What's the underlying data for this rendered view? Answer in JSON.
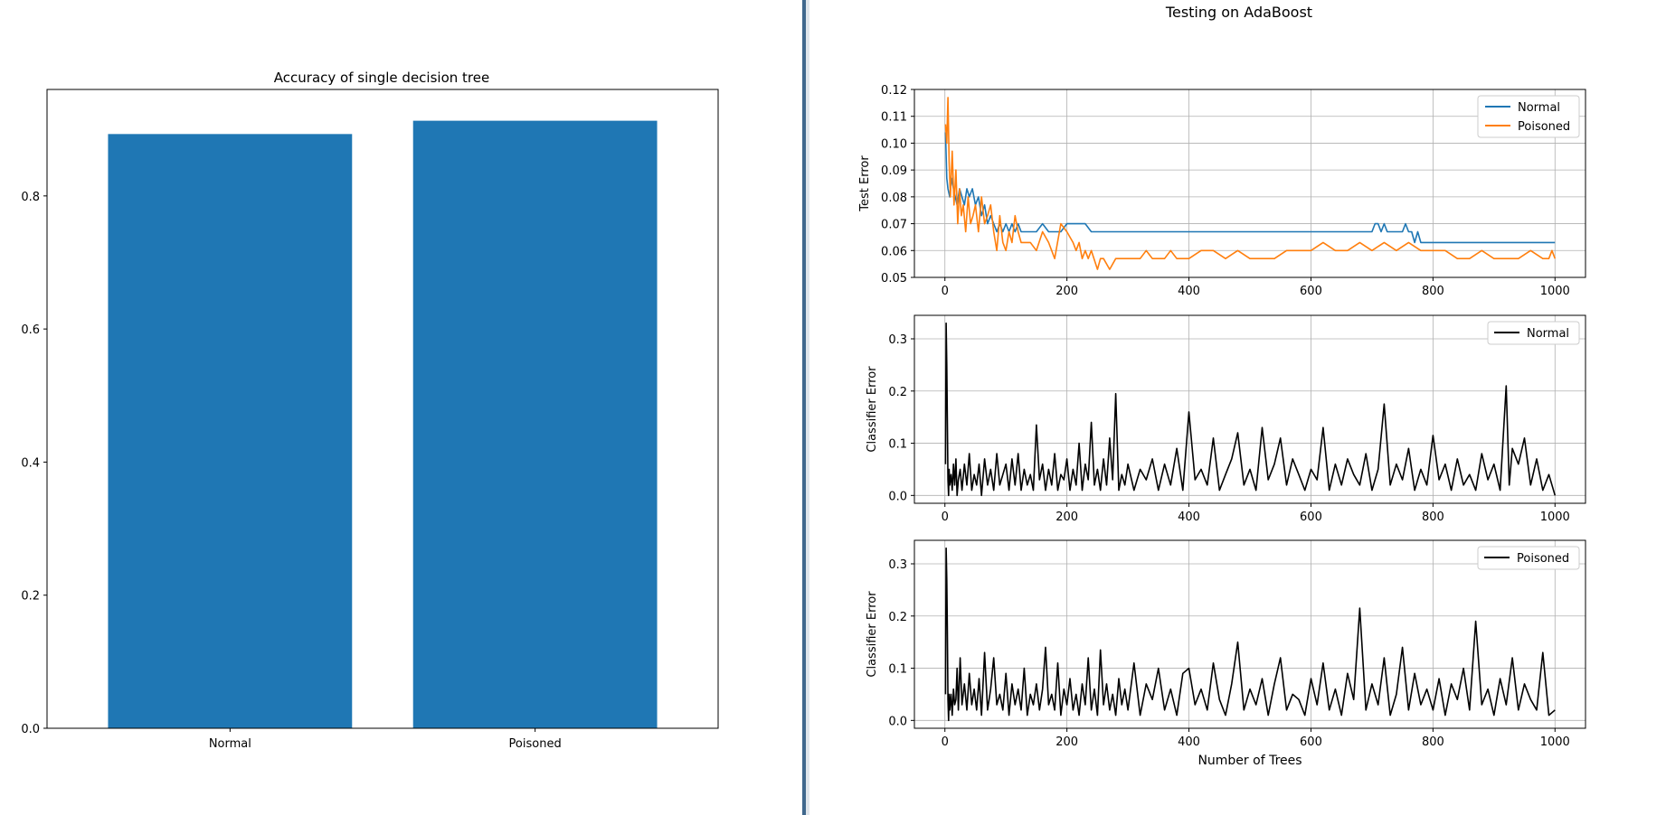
{
  "left_figure": {
    "title": "Accuracy of single decision tree"
  },
  "right_figure": {
    "suptitle": "Testing on AdaBoost",
    "xlabel": "Number of Trees",
    "panel1_ylabel": "Test Error",
    "panel2_ylabel": "Classifier Error",
    "panel3_ylabel": "Classifier Error",
    "legend1": [
      "Normal",
      "Poisoned"
    ],
    "legend2": "Normal",
    "legend3": "Poisoned"
  },
  "colors": {
    "bar": "#1f77b4",
    "normal": "#1f77b4",
    "poisoned": "#ff7f0e",
    "classifier": "#000000",
    "divider": "#1f4e79",
    "grid": "#b0b0b0"
  },
  "chart_data": [
    {
      "type": "bar",
      "title": "Accuracy of single decision tree",
      "categories": [
        "Normal",
        "Poisoned"
      ],
      "values": [
        0.893,
        0.913
      ],
      "ylim": [
        0,
        0.96
      ],
      "yticks": [
        0.0,
        0.2,
        0.4,
        0.6,
        0.8
      ],
      "ytick_labels": [
        "0.0",
        "0.2",
        "0.4",
        "0.6",
        "0.8"
      ],
      "xlabel": "",
      "ylabel": "",
      "grid": false
    },
    {
      "type": "line",
      "title": "",
      "ylabel": "Test Error",
      "xlim": [
        -50,
        1050
      ],
      "ylim": [
        0.05,
        0.12
      ],
      "xticks": [
        0,
        200,
        400,
        600,
        800,
        1000
      ],
      "xtick_labels": [
        "0",
        "200",
        "400",
        "600",
        "800",
        "1000"
      ],
      "yticks": [
        0.05,
        0.06,
        0.07,
        0.08,
        0.09,
        0.1,
        0.11,
        0.12
      ],
      "ytick_labels": [
        "0.05",
        "0.06",
        "0.07",
        "0.08",
        "0.09",
        "0.10",
        "0.11",
        "0.12"
      ],
      "grid": true,
      "legend": "top-right",
      "series": [
        {
          "name": "Normal",
          "x": [
            1,
            3,
            5,
            8,
            11,
            14,
            17,
            20,
            24,
            28,
            32,
            36,
            40,
            45,
            50,
            55,
            60,
            65,
            70,
            75,
            80,
            85,
            90,
            95,
            100,
            105,
            110,
            115,
            120,
            125,
            130,
            140,
            150,
            160,
            170,
            180,
            190,
            200,
            210,
            220,
            230,
            240,
            250,
            300,
            400,
            500,
            600,
            700,
            705,
            710,
            715,
            720,
            725,
            730,
            740,
            750,
            755,
            760,
            765,
            770,
            775,
            780,
            790,
            800,
            850,
            900,
            950,
            1000
          ],
          "y": [
            0.104,
            0.087,
            0.083,
            0.08,
            0.087,
            0.083,
            0.08,
            0.077,
            0.083,
            0.08,
            0.077,
            0.083,
            0.08,
            0.083,
            0.077,
            0.08,
            0.073,
            0.077,
            0.07,
            0.073,
            0.07,
            0.067,
            0.07,
            0.067,
            0.07,
            0.067,
            0.07,
            0.067,
            0.07,
            0.067,
            0.067,
            0.067,
            0.067,
            0.07,
            0.067,
            0.067,
            0.067,
            0.07,
            0.07,
            0.07,
            0.07,
            0.067,
            0.067,
            0.067,
            0.067,
            0.067,
            0.067,
            0.067,
            0.07,
            0.07,
            0.067,
            0.07,
            0.067,
            0.067,
            0.067,
            0.067,
            0.07,
            0.067,
            0.067,
            0.063,
            0.067,
            0.063,
            0.063,
            0.063,
            0.063,
            0.063,
            0.063,
            0.063
          ]
        },
        {
          "name": "Poisoned",
          "x": [
            1,
            3,
            5,
            7,
            9,
            12,
            15,
            18,
            21,
            24,
            27,
            30,
            34,
            38,
            42,
            46,
            50,
            55,
            60,
            65,
            70,
            75,
            80,
            85,
            90,
            95,
            100,
            105,
            110,
            115,
            120,
            125,
            130,
            140,
            150,
            160,
            170,
            180,
            190,
            200,
            210,
            215,
            220,
            225,
            230,
            235,
            240,
            250,
            255,
            260,
            270,
            280,
            290,
            300,
            310,
            320,
            330,
            340,
            350,
            360,
            370,
            380,
            400,
            420,
            440,
            460,
            480,
            500,
            520,
            540,
            560,
            580,
            600,
            620,
            640,
            660,
            680,
            700,
            720,
            740,
            760,
            780,
            800,
            820,
            840,
            860,
            880,
            900,
            920,
            940,
            960,
            980,
            990,
            995,
            1000
          ],
          "y": [
            0.107,
            0.1,
            0.117,
            0.093,
            0.08,
            0.097,
            0.077,
            0.09,
            0.07,
            0.083,
            0.073,
            0.077,
            0.067,
            0.08,
            0.07,
            0.073,
            0.077,
            0.067,
            0.08,
            0.07,
            0.073,
            0.077,
            0.067,
            0.06,
            0.073,
            0.063,
            0.06,
            0.067,
            0.063,
            0.073,
            0.067,
            0.063,
            0.063,
            0.063,
            0.06,
            0.067,
            0.063,
            0.057,
            0.07,
            0.067,
            0.063,
            0.06,
            0.063,
            0.057,
            0.06,
            0.057,
            0.06,
            0.053,
            0.057,
            0.057,
            0.053,
            0.057,
            0.057,
            0.057,
            0.057,
            0.057,
            0.06,
            0.057,
            0.057,
            0.057,
            0.06,
            0.057,
            0.057,
            0.06,
            0.06,
            0.057,
            0.06,
            0.057,
            0.057,
            0.057,
            0.06,
            0.06,
            0.06,
            0.063,
            0.06,
            0.06,
            0.063,
            0.06,
            0.063,
            0.06,
            0.063,
            0.06,
            0.06,
            0.06,
            0.057,
            0.057,
            0.06,
            0.057,
            0.057,
            0.057,
            0.06,
            0.057,
            0.057,
            0.06,
            0.057
          ]
        }
      ]
    },
    {
      "type": "line",
      "title": "",
      "ylabel": "Classifier Error",
      "xlim": [
        -50,
        1050
      ],
      "ylim": [
        -0.015,
        0.345
      ],
      "xticks": [
        0,
        200,
        400,
        600,
        800,
        1000
      ],
      "xtick_labels": [
        "0",
        "200",
        "400",
        "600",
        "800",
        "1000"
      ],
      "yticks": [
        0.0,
        0.1,
        0.2,
        0.3
      ],
      "ytick_labels": [
        "0.0",
        "0.1",
        "0.2",
        "0.3"
      ],
      "grid": true,
      "legend": "top-right",
      "series": [
        {
          "name": "Normal",
          "x": [
            1,
            2,
            3,
            4,
            5,
            6,
            7,
            8,
            10,
            12,
            14,
            16,
            18,
            20,
            22,
            25,
            28,
            32,
            36,
            40,
            44,
            48,
            52,
            56,
            60,
            65,
            70,
            75,
            80,
            85,
            90,
            95,
            100,
            105,
            110,
            115,
            120,
            125,
            130,
            135,
            140,
            145,
            150,
            155,
            160,
            165,
            170,
            175,
            180,
            185,
            190,
            195,
            200,
            205,
            210,
            215,
            220,
            225,
            230,
            235,
            240,
            245,
            250,
            255,
            260,
            265,
            270,
            275,
            280,
            285,
            290,
            295,
            300,
            310,
            320,
            330,
            340,
            350,
            360,
            370,
            380,
            390,
            400,
            410,
            420,
            430,
            440,
            450,
            460,
            470,
            480,
            490,
            500,
            510,
            520,
            530,
            540,
            550,
            560,
            570,
            580,
            590,
            600,
            610,
            620,
            630,
            640,
            650,
            660,
            670,
            680,
            690,
            700,
            710,
            720,
            730,
            740,
            750,
            760,
            770,
            780,
            790,
            800,
            810,
            820,
            830,
            840,
            850,
            860,
            870,
            880,
            890,
            900,
            910,
            920,
            925,
            930,
            940,
            950,
            960,
            970,
            980,
            990,
            1000
          ],
          "y": [
            0.06,
            0.33,
            0.25,
            0.15,
            0.03,
            0.0,
            0.05,
            0.02,
            0.04,
            0.01,
            0.06,
            0.02,
            0.07,
            0.0,
            0.03,
            0.05,
            0.01,
            0.06,
            0.02,
            0.08,
            0.01,
            0.04,
            0.02,
            0.06,
            0.0,
            0.07,
            0.02,
            0.05,
            0.01,
            0.08,
            0.02,
            0.04,
            0.06,
            0.01,
            0.07,
            0.02,
            0.08,
            0.01,
            0.05,
            0.02,
            0.04,
            0.01,
            0.135,
            0.03,
            0.06,
            0.01,
            0.05,
            0.02,
            0.08,
            0.01,
            0.04,
            0.03,
            0.07,
            0.01,
            0.05,
            0.02,
            0.1,
            0.01,
            0.06,
            0.03,
            0.14,
            0.02,
            0.05,
            0.01,
            0.07,
            0.02,
            0.11,
            0.03,
            0.195,
            0.01,
            0.04,
            0.02,
            0.06,
            0.01,
            0.05,
            0.03,
            0.07,
            0.01,
            0.06,
            0.02,
            0.09,
            0.01,
            0.16,
            0.03,
            0.05,
            0.02,
            0.11,
            0.01,
            0.04,
            0.07,
            0.12,
            0.02,
            0.05,
            0.01,
            0.13,
            0.03,
            0.06,
            0.11,
            0.02,
            0.07,
            0.04,
            0.01,
            0.05,
            0.03,
            0.13,
            0.01,
            0.06,
            0.02,
            0.07,
            0.04,
            0.02,
            0.08,
            0.01,
            0.05,
            0.175,
            0.02,
            0.06,
            0.03,
            0.09,
            0.01,
            0.05,
            0.02,
            0.115,
            0.03,
            0.06,
            0.01,
            0.07,
            0.02,
            0.04,
            0.01,
            0.08,
            0.03,
            0.06,
            0.01,
            0.21,
            0.02,
            0.09,
            0.06,
            0.11,
            0.02,
            0.07,
            0.01,
            0.04,
            0.0
          ]
        },
        {
          "name": "Poisoned",
          "x": [
            1,
            2,
            3,
            4,
            5,
            6,
            7,
            8,
            10,
            12,
            14,
            16,
            18,
            20,
            22,
            25,
            28,
            32,
            36,
            40,
            44,
            48,
            52,
            56,
            60,
            65,
            70,
            75,
            80,
            85,
            90,
            95,
            100,
            105,
            110,
            115,
            120,
            125,
            130,
            135,
            140,
            145,
            150,
            155,
            160,
            165,
            170,
            175,
            180,
            185,
            190,
            195,
            200,
            205,
            210,
            215,
            220,
            225,
            230,
            235,
            240,
            245,
            250,
            255,
            260,
            265,
            270,
            275,
            280,
            285,
            290,
            295,
            300,
            310,
            320,
            330,
            340,
            350,
            360,
            370,
            380,
            390,
            400,
            410,
            420,
            430,
            440,
            450,
            460,
            470,
            480,
            490,
            500,
            510,
            520,
            530,
            540,
            550,
            560,
            570,
            580,
            590,
            600,
            610,
            620,
            630,
            640,
            650,
            660,
            670,
            680,
            690,
            700,
            710,
            720,
            730,
            740,
            750,
            760,
            770,
            780,
            790,
            800,
            810,
            820,
            830,
            840,
            850,
            860,
            870,
            880,
            890,
            900,
            910,
            920,
            930,
            940,
            950,
            960,
            970,
            980,
            990,
            1000
          ],
          "y": [
            0.05,
            0.33,
            0.27,
            0.18,
            0.04,
            0.0,
            0.05,
            0.02,
            0.05,
            0.01,
            0.06,
            0.03,
            0.04,
            0.1,
            0.02,
            0.12,
            0.03,
            0.07,
            0.02,
            0.09,
            0.03,
            0.06,
            0.02,
            0.08,
            0.01,
            0.13,
            0.02,
            0.06,
            0.12,
            0.03,
            0.05,
            0.02,
            0.09,
            0.01,
            0.07,
            0.03,
            0.06,
            0.02,
            0.1,
            0.01,
            0.05,
            0.03,
            0.07,
            0.02,
            0.06,
            0.14,
            0.03,
            0.05,
            0.02,
            0.11,
            0.01,
            0.06,
            0.03,
            0.08,
            0.02,
            0.05,
            0.01,
            0.07,
            0.03,
            0.12,
            0.02,
            0.06,
            0.01,
            0.135,
            0.03,
            0.07,
            0.02,
            0.05,
            0.01,
            0.08,
            0.03,
            0.06,
            0.02,
            0.11,
            0.01,
            0.07,
            0.04,
            0.1,
            0.02,
            0.06,
            0.01,
            0.09,
            0.1,
            0.03,
            0.06,
            0.02,
            0.11,
            0.04,
            0.01,
            0.07,
            0.15,
            0.02,
            0.06,
            0.03,
            0.08,
            0.01,
            0.07,
            0.12,
            0.02,
            0.05,
            0.04,
            0.01,
            0.08,
            0.03,
            0.11,
            0.02,
            0.06,
            0.01,
            0.09,
            0.04,
            0.215,
            0.02,
            0.07,
            0.03,
            0.12,
            0.01,
            0.05,
            0.14,
            0.02,
            0.09,
            0.03,
            0.06,
            0.02,
            0.08,
            0.01,
            0.07,
            0.04,
            0.1,
            0.02,
            0.19,
            0.03,
            0.06,
            0.01,
            0.08,
            0.03,
            0.12,
            0.02,
            0.07,
            0.04,
            0.02,
            0.13,
            0.01,
            0.02
          ]
        }
      ]
    }
  ]
}
